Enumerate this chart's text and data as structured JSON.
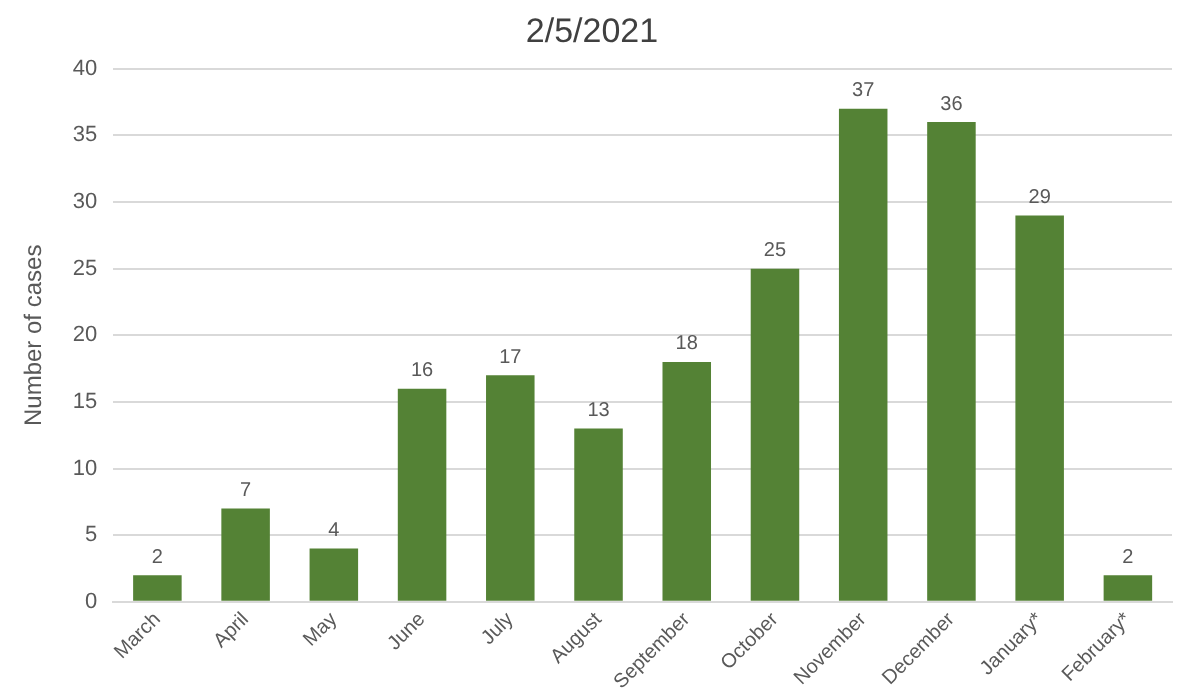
{
  "chart_data": {
    "type": "bar",
    "title": "2/5/2021",
    "ylabel": "Number of cases",
    "categories": [
      "March",
      "April",
      "May",
      "June",
      "July",
      "August",
      "September",
      "October",
      "November",
      "December",
      "January*",
      "February*"
    ],
    "values": [
      2,
      7,
      4,
      16,
      17,
      13,
      18,
      25,
      37,
      36,
      29,
      2
    ],
    "color": "#548235",
    "ylim": [
      0,
      40
    ],
    "yticks": [
      0,
      5,
      10,
      15,
      20,
      25,
      30,
      35,
      40
    ],
    "grid": "y",
    "data_labels": true
  }
}
